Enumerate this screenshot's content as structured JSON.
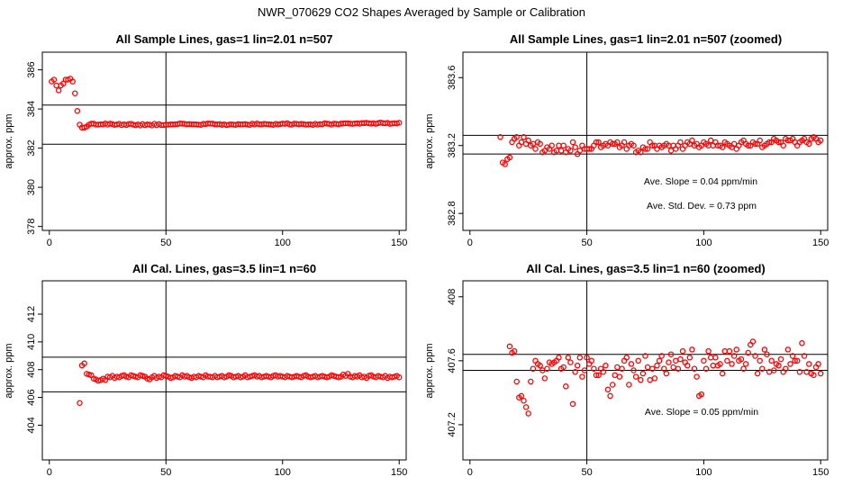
{
  "figure": {
    "title": "NWR_070629  CO2 Shapes Averaged by Sample or Calibration",
    "colors": {
      "points": "#ff0000",
      "lines": "#000000",
      "background": "#ffffff"
    }
  },
  "chart_data": [
    {
      "type": "scatter",
      "title": "All Sample Lines, gas=1 lin=2.01 n=507",
      "xlabel": "",
      "ylabel": "approx. ppm",
      "xlim": [
        -3,
        153
      ],
      "ylim": [
        377.8,
        386.9
      ],
      "xticks": [
        0,
        50,
        100,
        150
      ],
      "yticks": [
        378,
        380,
        382,
        384,
        386
      ],
      "vline_x": 50,
      "hlines_y": [
        384.2,
        382.2
      ],
      "annotations": [],
      "x": [
        1,
        2,
        3,
        4,
        5,
        6,
        7,
        8,
        9,
        10,
        11,
        12,
        13,
        14,
        15,
        16,
        17,
        18,
        19,
        20,
        21,
        22,
        23,
        24,
        25,
        26,
        27,
        28,
        29,
        30,
        31,
        32,
        33,
        34,
        35,
        36,
        37,
        38,
        39,
        40,
        41,
        42,
        43,
        44,
        45,
        46,
        47,
        48,
        49,
        50,
        51,
        52,
        53,
        54,
        55,
        56,
        57,
        58,
        59,
        60,
        61,
        62,
        63,
        64,
        65,
        66,
        67,
        68,
        69,
        70,
        71,
        72,
        73,
        74,
        75,
        76,
        77,
        78,
        79,
        80,
        81,
        82,
        83,
        84,
        85,
        86,
        87,
        88,
        89,
        90,
        91,
        92,
        93,
        94,
        95,
        96,
        97,
        98,
        99,
        100,
        101,
        102,
        103,
        104,
        105,
        106,
        107,
        108,
        109,
        110,
        111,
        112,
        113,
        114,
        115,
        116,
        117,
        118,
        119,
        120,
        121,
        122,
        123,
        124,
        125,
        126,
        127,
        128,
        129,
        130,
        131,
        132,
        133,
        134,
        135,
        136,
        137,
        138,
        139,
        140,
        141,
        142,
        143,
        144,
        145,
        146,
        147,
        148,
        149,
        150
      ],
      "y": [
        385.4,
        385.5,
        385.2,
        384.95,
        385.2,
        385.3,
        385.5,
        385.5,
        385.55,
        385.4,
        384.8,
        383.9,
        383.2,
        383.05,
        383.05,
        383.1,
        383.2,
        383.25,
        383.25,
        383.2,
        383.2,
        383.22,
        383.21,
        383.26,
        383.2,
        383.25,
        383.23,
        383.19,
        383.21,
        383.24,
        383.18,
        383.22,
        383.18,
        383.23,
        383.24,
        383.2,
        383.17,
        383.21,
        383.16,
        383.23,
        383.17,
        383.21,
        383.2,
        383.16,
        383.24,
        383.17,
        383.23,
        383.18,
        383.18,
        383.2,
        383.2,
        383.21,
        383.21,
        383.22,
        383.23,
        383.26,
        383.25,
        383.24,
        383.22,
        383.23,
        383.22,
        383.22,
        383.21,
        383.2,
        383.19,
        383.24,
        383.23,
        383.26,
        383.25,
        383.25,
        383.22,
        383.21,
        383.23,
        383.19,
        383.22,
        383.18,
        383.2,
        383.22,
        383.2,
        383.19,
        383.23,
        383.21,
        383.22,
        383.23,
        383.2,
        383.19,
        383.25,
        383.21,
        383.26,
        383.22,
        383.21,
        383.24,
        383.23,
        383.22,
        383.21,
        383.19,
        383.24,
        383.21,
        383.23,
        383.25,
        383.24,
        383.27,
        383.21,
        383.2,
        383.25,
        383.24,
        383.22,
        383.24,
        383.23,
        383.2,
        383.21,
        383.22,
        383.19,
        383.24,
        383.2,
        383.23,
        383.22,
        383.27,
        383.25,
        383.24,
        383.2,
        383.25,
        383.24,
        383.22,
        383.25,
        383.26,
        383.27,
        383.27,
        383.25,
        383.24,
        383.26,
        383.27,
        383.25,
        383.28,
        383.28,
        383.29,
        383.27,
        383.25,
        383.27,
        383.24,
        383.28,
        383.31,
        383.28,
        383.27,
        383.29,
        383.24,
        383.26,
        383.27,
        383.26,
        383.3
      ]
    },
    {
      "type": "scatter",
      "title": "All Sample Lines, gas=1 lin=2.01 n=507 (zoomed)",
      "xlabel": "",
      "ylabel": "approx. ppm",
      "xlim": [
        -3,
        153
      ],
      "ylim": [
        382.7,
        383.75
      ],
      "xticks": [
        0,
        50,
        100,
        150
      ],
      "yticks": [
        382.8,
        383.2,
        383.6
      ],
      "vline_x": 50,
      "hlines_y": [
        383.26,
        383.15
      ],
      "annotations": [
        "Ave. Slope =  0.04  ppm/min",
        "Ave. Std. Dev. =  0.73  ppm"
      ],
      "x": [
        13,
        14,
        15,
        16,
        17,
        18,
        19,
        20,
        21,
        22,
        23,
        24,
        25,
        26,
        27,
        28,
        29,
        30,
        31,
        32,
        33,
        34,
        35,
        36,
        37,
        38,
        39,
        40,
        41,
        42,
        43,
        44,
        45,
        46,
        47,
        48,
        49,
        50,
        51,
        52,
        53,
        54,
        55,
        56,
        57,
        58,
        59,
        60,
        61,
        62,
        63,
        64,
        65,
        66,
        67,
        68,
        69,
        70,
        71,
        72,
        73,
        74,
        75,
        76,
        77,
        78,
        79,
        80,
        81,
        82,
        83,
        84,
        85,
        86,
        87,
        88,
        89,
        90,
        91,
        92,
        93,
        94,
        95,
        96,
        97,
        98,
        99,
        100,
        101,
        102,
        103,
        104,
        105,
        106,
        107,
        108,
        109,
        110,
        111,
        112,
        113,
        114,
        115,
        116,
        117,
        118,
        119,
        120,
        121,
        122,
        123,
        124,
        125,
        126,
        127,
        128,
        129,
        130,
        131,
        132,
        133,
        134,
        135,
        136,
        137,
        138,
        139,
        140,
        141,
        142,
        143,
        144,
        145,
        146,
        147,
        148,
        149,
        150
      ],
      "y": [
        383.25,
        383.1,
        383.09,
        383.12,
        383.13,
        383.22,
        383.24,
        383.25,
        383.2,
        383.22,
        383.25,
        383.21,
        383.23,
        383.2,
        383.21,
        383.18,
        383.22,
        383.21,
        383.16,
        383.17,
        383.19,
        383.18,
        383.2,
        383.16,
        383.17,
        383.2,
        383.17,
        383.2,
        383.16,
        383.18,
        383.17,
        383.22,
        383.19,
        383.15,
        383.17,
        383.2,
        383.18,
        383.18,
        383.18,
        383.18,
        383.2,
        383.22,
        383.22,
        383.19,
        383.2,
        383.21,
        383.2,
        383.22,
        383.21,
        383.21,
        383.22,
        383.19,
        383.2,
        383.22,
        383.18,
        383.2,
        383.21,
        383.2,
        383.16,
        383.17,
        383.16,
        383.19,
        383.18,
        383.18,
        383.22,
        383.2,
        383.2,
        383.18,
        383.2,
        383.19,
        383.2,
        383.21,
        383.2,
        383.17,
        383.2,
        383.18,
        383.2,
        383.22,
        383.18,
        383.2,
        383.22,
        383.21,
        383.23,
        383.2,
        383.21,
        383.19,
        383.2,
        383.22,
        383.21,
        383.2,
        383.23,
        383.2,
        383.22,
        383.2,
        383.2,
        383.19,
        383.22,
        383.21,
        383.2,
        383.19,
        383.21,
        383.18,
        383.2,
        383.22,
        383.23,
        383.21,
        383.2,
        383.2,
        383.22,
        383.21,
        383.21,
        383.23,
        383.19,
        383.2,
        383.21,
        383.22,
        383.22,
        383.24,
        383.23,
        383.22,
        383.22,
        383.2,
        383.24,
        383.23,
        383.23,
        383.24,
        383.22,
        383.2,
        383.22,
        383.23,
        383.24,
        383.22,
        383.21,
        383.24,
        383.25,
        383.24,
        383.22,
        383.23
      ]
    },
    {
      "type": "scatter",
      "title": "All Cal. Lines, gas=3.5 lin=1 n=60",
      "xlabel": "",
      "ylabel": "approx. ppm",
      "xlim": [
        -3,
        153
      ],
      "ylim": [
        401.5,
        414.4
      ],
      "xticks": [
        0,
        50,
        100,
        150
      ],
      "yticks": [
        404,
        406,
        408,
        410,
        412
      ],
      "vline_x": 50,
      "hlines_y": [
        408.9,
        406.4
      ],
      "annotations": [],
      "x": [
        13,
        14,
        15,
        16,
        17,
        18,
        19,
        20,
        21,
        22,
        23,
        24,
        25,
        26,
        27,
        28,
        29,
        30,
        31,
        32,
        33,
        34,
        35,
        36,
        37,
        38,
        39,
        40,
        41,
        42,
        43,
        44,
        45,
        46,
        47,
        48,
        49,
        50,
        51,
        52,
        53,
        54,
        55,
        56,
        57,
        58,
        59,
        60,
        61,
        62,
        63,
        64,
        65,
        66,
        67,
        68,
        69,
        70,
        71,
        72,
        73,
        74,
        75,
        76,
        77,
        78,
        79,
        80,
        81,
        82,
        83,
        84,
        85,
        86,
        87,
        88,
        89,
        90,
        91,
        92,
        93,
        94,
        95,
        96,
        97,
        98,
        99,
        100,
        101,
        102,
        103,
        104,
        105,
        106,
        107,
        108,
        109,
        110,
        111,
        112,
        113,
        114,
        115,
        116,
        117,
        118,
        119,
        120,
        121,
        122,
        123,
        124,
        125,
        126,
        127,
        128,
        129,
        130,
        131,
        132,
        133,
        134,
        135,
        136,
        137,
        138,
        139,
        140,
        141,
        142,
        143,
        144,
        145,
        146,
        147,
        148,
        149,
        150
      ],
      "y": [
        405.6,
        408.3,
        408.45,
        407.7,
        407.65,
        407.6,
        407.35,
        407.3,
        407.2,
        407.25,
        407.35,
        407.25,
        407.5,
        407.45,
        407.55,
        407.4,
        407.5,
        407.45,
        407.55,
        407.6,
        407.5,
        407.45,
        407.6,
        407.55,
        407.5,
        407.45,
        407.6,
        407.55,
        407.5,
        407.35,
        407.3,
        407.45,
        407.55,
        407.4,
        407.5,
        407.45,
        407.6,
        407.55,
        407.5,
        407.4,
        407.45,
        407.55,
        407.5,
        407.45,
        407.6,
        407.5,
        407.55,
        407.45,
        407.4,
        407.5,
        407.45,
        407.55,
        407.5,
        407.45,
        407.6,
        407.5,
        407.5,
        407.45,
        407.55,
        407.45,
        407.5,
        407.55,
        407.45,
        407.5,
        407.6,
        407.55,
        407.45,
        407.5,
        407.55,
        407.45,
        407.5,
        407.6,
        407.45,
        407.5,
        407.55,
        407.6,
        407.5,
        407.55,
        407.45,
        407.5,
        407.55,
        407.5,
        407.45,
        407.55,
        407.6,
        407.5,
        407.55,
        407.5,
        407.45,
        407.55,
        407.5,
        407.45,
        407.5,
        407.55,
        407.5,
        407.45,
        407.55,
        407.6,
        407.5,
        407.45,
        407.5,
        407.55,
        407.45,
        407.5,
        407.55,
        407.5,
        407.45,
        407.5,
        407.6,
        407.55,
        407.5,
        407.45,
        407.5,
        407.65,
        407.55,
        407.7,
        407.5,
        407.45,
        407.55,
        407.5,
        407.6,
        407.45,
        407.5,
        407.4,
        407.55,
        407.6,
        407.5,
        407.45,
        407.55,
        407.5,
        407.45,
        407.55,
        407.4,
        407.5,
        407.45,
        407.5,
        407.55,
        407.45
      ]
    },
    {
      "type": "scatter",
      "title": "All Cal. Lines, gas=3.5 lin=1 n=60 (zoomed)",
      "xlabel": "",
      "ylabel": "approx. ppm",
      "xlim": [
        -3,
        153
      ],
      "ylim": [
        406.98,
        408.1
      ],
      "xticks": [
        0,
        50,
        100,
        150
      ],
      "yticks": [
        407.2,
        407.6,
        408.0
      ],
      "vline_x": 50,
      "hlines_y": [
        407.64,
        407.54
      ],
      "annotations": [
        "Ave. Slope =  0.05  ppm/min"
      ],
      "x": [
        17,
        18,
        19,
        20,
        21,
        22,
        23,
        24,
        25,
        26,
        27,
        28,
        29,
        30,
        31,
        32,
        33,
        34,
        35,
        36,
        37,
        38,
        39,
        40,
        41,
        42,
        43,
        44,
        45,
        46,
        47,
        48,
        49,
        50,
        51,
        52,
        53,
        54,
        55,
        56,
        57,
        58,
        59,
        60,
        61,
        62,
        63,
        64,
        65,
        66,
        67,
        68,
        69,
        70,
        71,
        72,
        73,
        74,
        75,
        76,
        77,
        78,
        79,
        80,
        81,
        82,
        83,
        84,
        85,
        86,
        87,
        88,
        89,
        90,
        91,
        92,
        93,
        94,
        95,
        96,
        97,
        98,
        99,
        100,
        101,
        102,
        103,
        104,
        105,
        106,
        107,
        108,
        109,
        110,
        111,
        112,
        113,
        114,
        115,
        116,
        117,
        118,
        119,
        120,
        121,
        122,
        123,
        124,
        125,
        126,
        127,
        128,
        129,
        130,
        131,
        132,
        133,
        134,
        135,
        136,
        137,
        138,
        139,
        140,
        141,
        142,
        143,
        144,
        145,
        146,
        147,
        148,
        149,
        150
      ],
      "y": [
        407.69,
        407.65,
        407.66,
        407.47,
        407.37,
        407.38,
        407.35,
        407.31,
        407.27,
        407.47,
        407.55,
        407.6,
        407.58,
        407.57,
        407.54,
        407.49,
        407.55,
        407.59,
        407.58,
        407.59,
        407.6,
        407.62,
        407.55,
        407.56,
        407.44,
        407.62,
        407.59,
        407.33,
        407.53,
        407.57,
        407.62,
        407.5,
        407.54,
        407.62,
        407.58,
        407.6,
        407.55,
        407.51,
        407.51,
        407.55,
        407.53,
        407.57,
        407.42,
        407.38,
        407.45,
        407.51,
        407.56,
        407.5,
        407.55,
        407.6,
        407.62,
        407.45,
        407.58,
        407.54,
        407.5,
        407.6,
        407.48,
        407.52,
        407.63,
        407.56,
        407.48,
        407.55,
        407.49,
        407.57,
        407.6,
        407.63,
        407.55,
        407.52,
        407.59,
        407.64,
        407.56,
        407.6,
        407.55,
        407.61,
        407.66,
        407.59,
        407.57,
        407.62,
        407.67,
        407.55,
        407.5,
        407.38,
        407.39,
        407.6,
        407.55,
        407.66,
        407.62,
        407.57,
        407.62,
        407.57,
        407.58,
        407.52,
        407.66,
        407.6,
        407.66,
        407.58,
        407.63,
        407.67,
        407.6,
        407.61,
        407.55,
        407.58,
        407.65,
        407.7,
        407.72,
        407.63,
        407.52,
        407.6,
        407.55,
        407.67,
        407.64,
        407.53,
        407.6,
        407.54,
        407.58,
        407.57,
        407.61,
        407.53,
        407.55,
        407.67,
        407.58,
        407.63,
        407.6,
        407.6,
        407.53,
        407.71,
        407.63,
        407.53,
        407.58,
        407.52,
        407.51,
        407.56,
        407.58,
        407.52
      ]
    }
  ]
}
